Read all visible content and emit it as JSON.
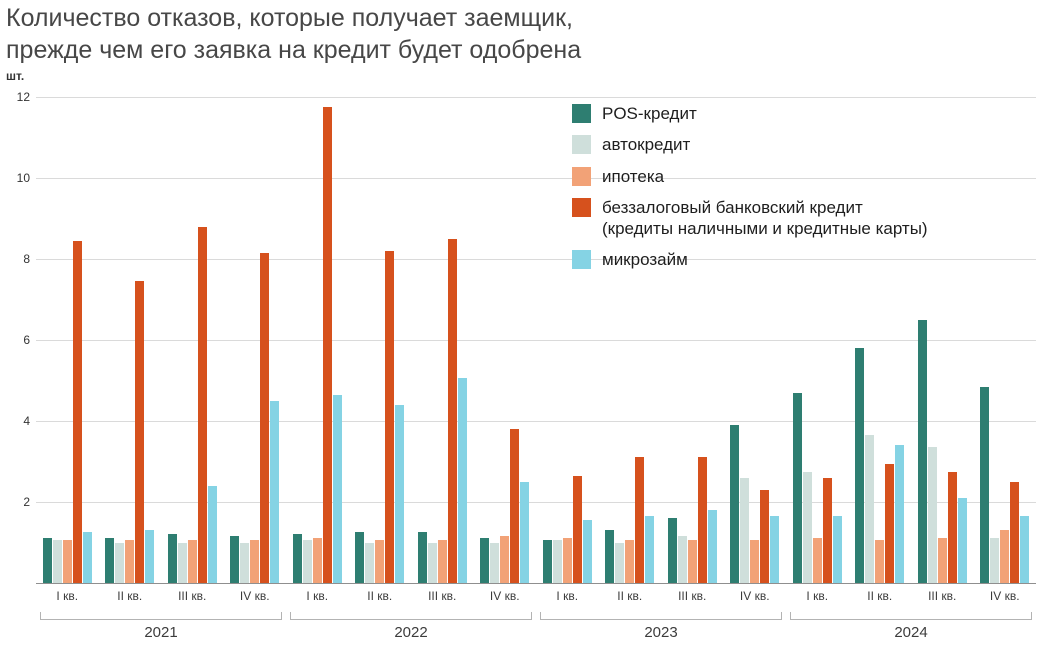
{
  "chart_data": {
    "type": "bar",
    "title_line1": "Количество отказов, которые получает заемщик,",
    "title_line2": "прежде чем его заявка на кредит будет одобрена",
    "ylabel": "шт.",
    "ylim": [
      0,
      12
    ],
    "yticks": [
      2,
      4,
      6,
      8,
      10,
      12
    ],
    "grid": true,
    "legend_position": "top-right",
    "categories": [
      "I кв.",
      "II кв.",
      "III кв.",
      "IV кв.",
      "I кв.",
      "II кв.",
      "III кв.",
      "IV кв.",
      "I кв.",
      "II кв.",
      "III кв.",
      "IV кв.",
      "I кв.",
      "II кв.",
      "III кв.",
      "IV кв."
    ],
    "year_groups": [
      {
        "label": "2021",
        "span": 4
      },
      {
        "label": "2022",
        "span": 4
      },
      {
        "label": "2023",
        "span": 4
      },
      {
        "label": "2024",
        "span": 4
      }
    ],
    "series": [
      {
        "name": "POS-кредит",
        "color": "#2e7e71",
        "values": [
          1.1,
          1.1,
          1.2,
          1.15,
          1.2,
          1.25,
          1.25,
          1.1,
          1.05,
          1.3,
          1.6,
          3.9,
          4.7,
          5.8,
          6.5,
          4.85
        ]
      },
      {
        "name": "автокредит",
        "color": "#cfdfdb",
        "values": [
          1.05,
          1.0,
          1.0,
          1.0,
          1.05,
          1.0,
          1.0,
          1.0,
          1.05,
          1.0,
          1.15,
          2.6,
          2.75,
          3.65,
          3.35,
          1.1
        ]
      },
      {
        "name": "ипотека",
        "color": "#f2a277",
        "values": [
          1.05,
          1.05,
          1.05,
          1.05,
          1.1,
          1.05,
          1.05,
          1.15,
          1.1,
          1.05,
          1.05,
          1.05,
          1.1,
          1.05,
          1.1,
          1.3
        ]
      },
      {
        "name": "беззалоговый банковский кредит",
        "sublabel": "(кредиты наличными и кредитные карты)",
        "color": "#d6511d",
        "values": [
          8.45,
          7.45,
          8.8,
          8.15,
          11.75,
          8.2,
          8.5,
          3.8,
          2.65,
          3.1,
          3.1,
          2.3,
          2.6,
          2.95,
          2.75,
          2.5
        ]
      },
      {
        "name": "микрозайм",
        "color": "#85d3e4",
        "values": [
          1.25,
          1.3,
          2.4,
          4.5,
          4.65,
          4.4,
          5.05,
          2.5,
          1.55,
          1.65,
          1.8,
          1.65,
          1.65,
          3.4,
          2.1,
          1.65
        ]
      }
    ]
  }
}
